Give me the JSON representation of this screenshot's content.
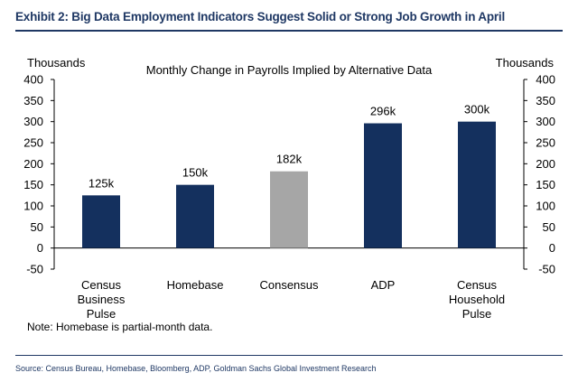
{
  "exhibit_title": "Exhibit 2: Big Data Employment Indicators Suggest Solid or Strong Job Growth in April",
  "source": "Source: Census Bureau, Homebase, Bloomberg, ADP, Goldman Sachs Global Investment Research",
  "note": "Note: Homebase is partial-month data.",
  "chart_data": {
    "type": "bar",
    "title": "Monthly Change in Payrolls Implied by Alternative Data",
    "ylabel_left": "Thousands",
    "ylabel_right": "Thousands",
    "ylim": [
      -50,
      400
    ],
    "yticks": [
      -50,
      0,
      50,
      100,
      150,
      200,
      250,
      300,
      350,
      400
    ],
    "categories": [
      [
        "Census",
        "Business",
        "Pulse"
      ],
      [
        "Homebase"
      ],
      [
        "Consensus"
      ],
      [
        "ADP"
      ],
      [
        "Census",
        "Household",
        "Pulse"
      ]
    ],
    "values": [
      125,
      150,
      182,
      296,
      300
    ],
    "value_labels": [
      "125k",
      "150k",
      "182k",
      "296k",
      "300k"
    ],
    "colors": [
      "#14305e",
      "#14305e",
      "#a6a6a6",
      "#14305e",
      "#14305e"
    ],
    "grid": false
  }
}
